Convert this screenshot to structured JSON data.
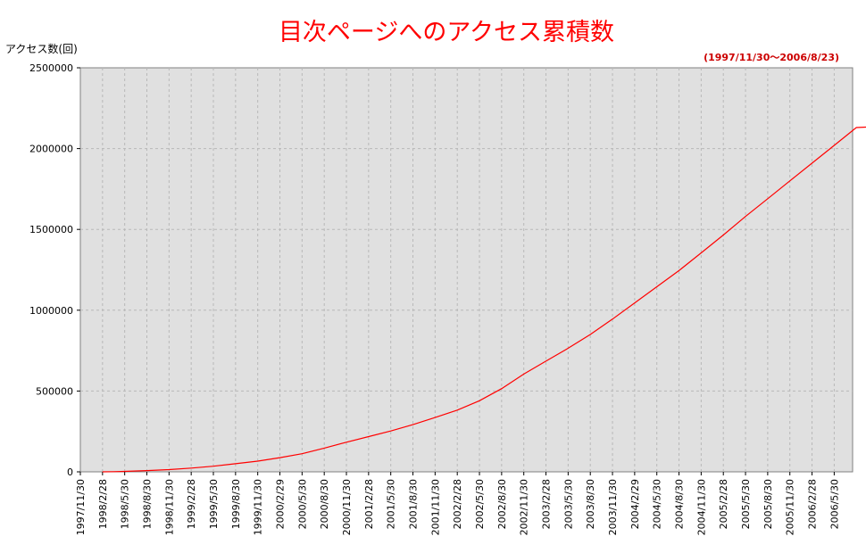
{
  "chart_data": {
    "type": "line",
    "title": "目次ページへのアクセス累積数",
    "subtitle": "(1997/11/30～2006/8/23)",
    "ylabel": "アクセス数(回)",
    "xlabel": "",
    "ylim": [
      0,
      2500000
    ],
    "yticks": [
      "0",
      "500000",
      "1000000",
      "1500000",
      "2000000",
      "2500000"
    ],
    "xticks": [
      "1997/11/30",
      "1998/2/28",
      "1998/5/30",
      "1998/8/30",
      "1998/11/30",
      "1999/2/28",
      "1999/5/30",
      "1999/8/30",
      "1999/11/30",
      "2000/2/29",
      "2000/5/30",
      "2000/8/30",
      "2000/11/30",
      "2001/2/28",
      "2001/5/30",
      "2001/8/30",
      "2001/11/30",
      "2002/2/28",
      "2002/5/30",
      "2002/8/30",
      "2002/11/30",
      "2003/2/28",
      "2003/5/30",
      "2003/8/30",
      "2003/11/30",
      "2004/2/29",
      "2004/5/30",
      "2004/8/30",
      "2004/11/30",
      "2005/2/28",
      "2005/5/30",
      "2005/8/30",
      "2005/11/30",
      "2006/2/28",
      "2006/5/30"
    ],
    "grid": true,
    "background": "#e0e0e0",
    "line_color": "#ff0000",
    "series": [
      {
        "x": [
          1,
          1.5,
          2,
          3,
          4,
          5,
          6,
          7,
          8,
          9,
          10,
          11,
          12,
          13,
          14,
          15,
          16,
          17,
          18,
          19,
          20,
          21,
          22,
          23,
          24,
          25,
          26,
          27,
          28,
          29,
          30,
          31,
          32,
          33,
          34,
          35,
          35.83
        ],
        "y": [
          0,
          1000,
          3000,
          8000,
          14000,
          23000,
          35000,
          50000,
          66000,
          88000,
          112000,
          147000,
          183000,
          218000,
          253000,
          292000,
          336000,
          382000,
          440000,
          515000,
          605000,
          685000,
          765000,
          850000,
          945000,
          1045000,
          1145000,
          1245000,
          1355000,
          1465000,
          1580000,
          1690000,
          1800000,
          1910000,
          2020000,
          2130000,
          2135000
        ]
      }
    ]
  }
}
